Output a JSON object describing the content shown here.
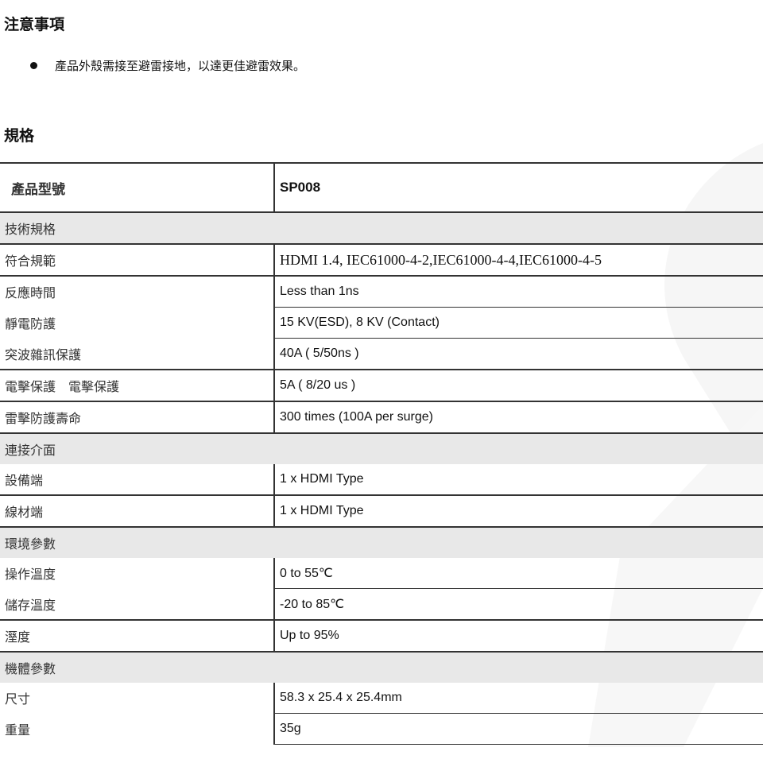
{
  "notice": {
    "title": "注意事項",
    "items": [
      "產品外殼需接至避雷接地，以達更佳避雷效果。"
    ]
  },
  "specs": {
    "title": "規格",
    "header": {
      "label": "產品型號",
      "value": "SP008"
    },
    "rows": [
      {
        "group": "技術規格"
      },
      {
        "label": "符合規範",
        "value": "HDMI 1.4, IEC61000-4-2,IEC61000-4-4,IEC61000-4-5"
      },
      {
        "label": "反應時間",
        "value": "Less than 1ns"
      },
      {
        "label": "靜電防護",
        "value": "15 KV(ESD), 8 KV (Contact)"
      },
      {
        "label": "突波雜訊保護",
        "value": "40A ( 5/50ns )"
      },
      {
        "label": "電擊保護　電擊保護",
        "value": "5A ( 8/20 us )"
      },
      {
        "label": "雷擊防護壽命",
        "value": "300 times (100A per surge)"
      },
      {
        "group": "連接介面"
      },
      {
        "label": "設備端",
        "value": "1 x HDMI Type"
      },
      {
        "label": "線材端",
        "value": "1 x HDMI Type"
      },
      {
        "group": "環境參數"
      },
      {
        "label": "操作溫度",
        "value": "0 to 55℃"
      },
      {
        "label": "儲存溫度",
        "value": "-20 to 85℃"
      },
      {
        "label": "溼度",
        "value": "Up to 95%"
      },
      {
        "group": "機體參數"
      },
      {
        "label": "尺寸",
        "value": "58.3 x 25.4 x 25.4mm"
      },
      {
        "label": "重量",
        "value": "35g"
      }
    ]
  }
}
